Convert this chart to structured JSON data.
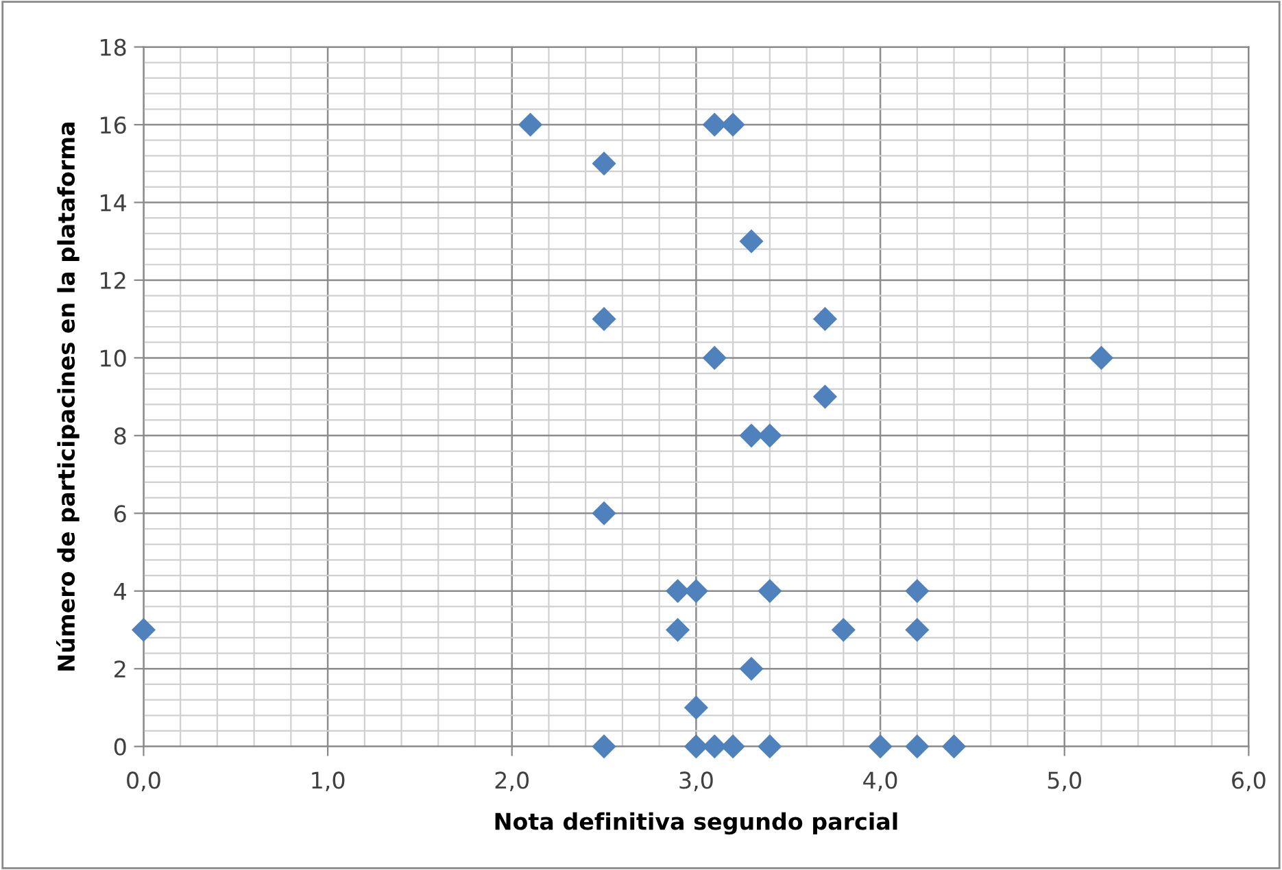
{
  "chart_data": {
    "type": "scatter",
    "xlabel": "Nota definitiva segundo parcial",
    "ylabel": "Número de participacines en la plataforma",
    "x": [
      0.0,
      2.1,
      2.5,
      2.5,
      2.5,
      2.5,
      2.9,
      2.9,
      3.0,
      3.0,
      3.0,
      3.1,
      3.1,
      3.1,
      3.2,
      3.2,
      3.3,
      3.3,
      3.3,
      3.4,
      3.4,
      3.4,
      3.7,
      3.7,
      3.8,
      4.0,
      4.2,
      4.2,
      4.2,
      4.4,
      5.2
    ],
    "values": [
      3,
      16,
      15,
      11,
      6,
      0,
      4,
      3,
      4,
      1,
      0,
      16,
      10,
      0,
      16,
      0,
      13,
      8,
      2,
      8,
      4,
      0,
      11,
      9,
      3,
      0,
      4,
      3,
      0,
      0,
      10
    ],
    "color": "#4f81bd",
    "marker": "diamond",
    "xlim": [
      0,
      6
    ],
    "ylim": [
      0,
      18
    ],
    "xticks": [
      {
        "value": 0,
        "label": "0,0"
      },
      {
        "value": 1,
        "label": "1,0"
      },
      {
        "value": 2,
        "label": "2,0"
      },
      {
        "value": 3,
        "label": "3,0"
      },
      {
        "value": 4,
        "label": "4,0"
      },
      {
        "value": 5,
        "label": "5,0"
      },
      {
        "value": 6,
        "label": "6,0"
      }
    ],
    "yticks": [
      0,
      2,
      4,
      6,
      8,
      10,
      12,
      14,
      16,
      18
    ],
    "grid": true,
    "legend": false
  }
}
